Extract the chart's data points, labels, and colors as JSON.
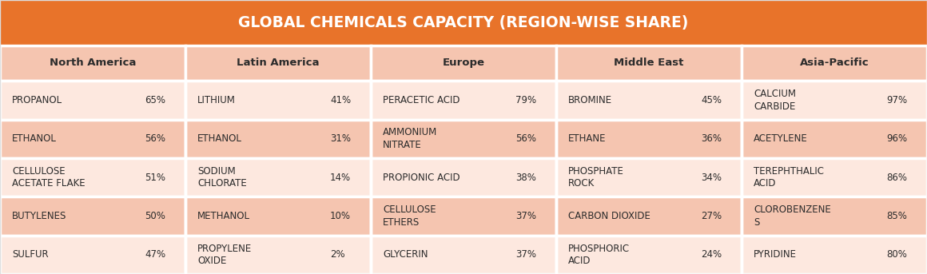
{
  "title": "GLOBAL CHEMICALS CAPACITY (REGION-WISE SHARE)",
  "title_bg": "#E8732A",
  "title_color": "#FFFFFF",
  "header_bg": "#F5C5B0",
  "row_bg_light": "#FDE8DF",
  "row_bg_dark": "#F5C5B0",
  "cell_text_color": "#2C2C2C",
  "pct_text_color": "#2C2C2C",
  "border_color": "#FFFFFF",
  "regions": [
    "North America",
    "Latin America",
    "Europe",
    "Middle East",
    "Asia-Pacific"
  ],
  "rows": [
    [
      {
        "chemical": "PROPANOL",
        "pct": "65%"
      },
      {
        "chemical": "LITHIUM",
        "pct": "41%"
      },
      {
        "chemical": "PERACETIC ACID",
        "pct": "79%"
      },
      {
        "chemical": "BROMINE",
        "pct": "45%"
      },
      {
        "chemical": "CALCIUM\nCARBIDE",
        "pct": "97%"
      }
    ],
    [
      {
        "chemical": "ETHANOL",
        "pct": "56%"
      },
      {
        "chemical": "ETHANOL",
        "pct": "31%"
      },
      {
        "chemical": "AMMONIUM\nNITRATE",
        "pct": "56%"
      },
      {
        "chemical": "ETHANE",
        "pct": "36%"
      },
      {
        "chemical": "ACETYLENE",
        "pct": "96%"
      }
    ],
    [
      {
        "chemical": "CELLULOSE\nACETATE FLAKE",
        "pct": "51%"
      },
      {
        "chemical": "SODIUM\nCHLORATE",
        "pct": "14%"
      },
      {
        "chemical": "PROPIONIC ACID",
        "pct": "38%"
      },
      {
        "chemical": "PHOSPHATE\nROCK",
        "pct": "34%"
      },
      {
        "chemical": "TEREPHTHALIC\nACID",
        "pct": "86%"
      }
    ],
    [
      {
        "chemical": "BUTYLENES",
        "pct": "50%"
      },
      {
        "chemical": "METHANOL",
        "pct": "10%"
      },
      {
        "chemical": "CELLULOSE\nETHERS",
        "pct": "37%"
      },
      {
        "chemical": "CARBON DIOXIDE",
        "pct": "27%"
      },
      {
        "chemical": "CLOROBENZENE\nS",
        "pct": "85%"
      }
    ],
    [
      {
        "chemical": "SULFUR",
        "pct": "47%"
      },
      {
        "chemical": "PROPYLENE\nOXIDE",
        "pct": "2%"
      },
      {
        "chemical": "GLYCERIN",
        "pct": "37%"
      },
      {
        "chemical": "PHOSPHORIC\nACID",
        "pct": "24%"
      },
      {
        "chemical": "PYRIDINE",
        "pct": "80%"
      }
    ]
  ],
  "figsize": [
    11.6,
    3.43
  ],
  "dpi": 100,
  "title_fontsize": 13.5,
  "header_fontsize": 9.5,
  "cell_fontsize": 8.5,
  "pct_fontsize": 8.5
}
